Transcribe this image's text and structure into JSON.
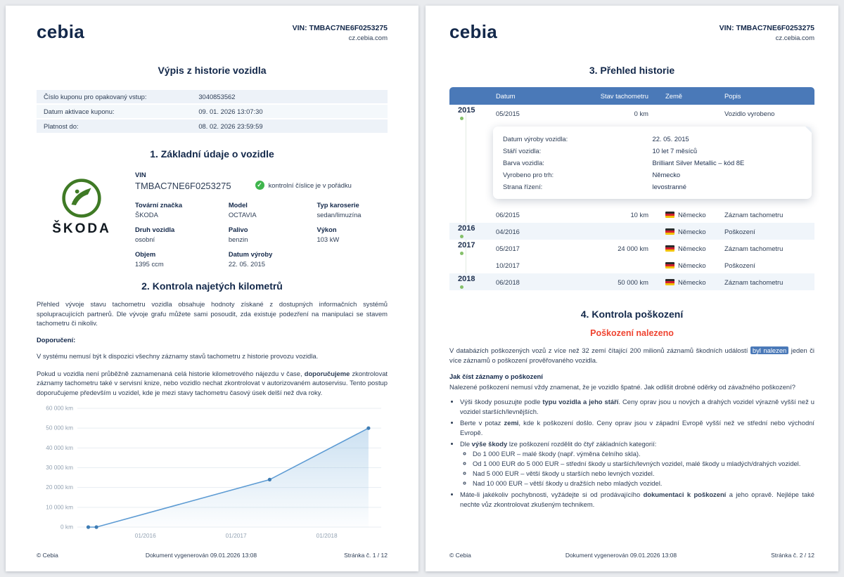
{
  "header": {
    "logo": "cebia",
    "vin": "VIN: TMBAC7NE6F0253275",
    "site": "cz.cebia.com"
  },
  "icons": {
    "check": "✓"
  },
  "page1": {
    "title": "Výpis z historie vozidla",
    "coupon_rows": [
      {
        "label": "Číslo kuponu pro opakovaný vstup:",
        "value": "3040853562"
      },
      {
        "label": "Datum aktivace kuponu:",
        "value": "09. 01. 2026 13:07:30"
      },
      {
        "label": "Platnost do:",
        "value": "08. 02. 2026 23:59:59"
      }
    ],
    "section1": {
      "title": "1. Základní údaje o vozidle",
      "skoda_logo_text": "ŠKODA",
      "vin_label": "VIN",
      "vin_value": "TMBAC7NE6F0253275",
      "vin_check": "kontrolní číslice je v pořádku",
      "fields": [
        {
          "label": "Tovární značka",
          "value": "ŠKODA"
        },
        {
          "label": "Model",
          "value": "OCTAVIA"
        },
        {
          "label": "Typ karoserie",
          "value": "sedan/limuzína"
        },
        {
          "label": "Druh vozidla",
          "value": "osobní"
        },
        {
          "label": "Palivo",
          "value": "benzin"
        },
        {
          "label": "Výkon",
          "value": "103 kW"
        },
        {
          "label": "Objem",
          "value": "1395 ccm"
        },
        {
          "label": "Datum výroby",
          "value": "22. 05. 2015"
        }
      ]
    },
    "section2": {
      "title": "2. Kontrola najetých kilometrů",
      "intro": "Přehled vývoje stavu tachometru vozidla obsahuje hodnoty získané z dostupných informačních systémů spolupracujících partnerů. Dle vývoje grafu můžete sami posoudit, zda existuje podezření na manipulaci se stavem tachometru či nikoliv.",
      "recommendation_label": "Doporučení:",
      "p1": "V systému nemusí být k dispozici všechny záznamy stavů tachometru z historie provozu vozidla.",
      "p2": [
        {
          "t": "Pokud u vozidla není průběžně zaznamenaná celá historie kilometrového nájezdu v čase, "
        },
        {
          "t": "doporučujeme",
          "b": true
        },
        {
          "t": " zkontrolovat záznamy tachometru také v servisní knize, nebo vozidlo nechat zkontrolovat v autorizovaném autoservisu. Tento postup doporučujeme především u vozidel, kde je mezi stavy tachometru časový úsek delší než dva roky."
        }
      ]
    },
    "footer": {
      "copyright": "© Cebia",
      "generated": "Dokument vygenerován 09.01.2026 13:08",
      "page": "Stránka č. 1 / 12"
    }
  },
  "chart_data": {
    "type": "line",
    "xlim": [
      2015.25,
      2018.6
    ],
    "ylim": [
      0,
      60000
    ],
    "grid": true,
    "legend": false,
    "line_color": "#5d9bd3",
    "points": [
      {
        "x": 2015.37,
        "y": 0,
        "label": "05/2015"
      },
      {
        "x": 2015.46,
        "y": 10,
        "label": "06/2015"
      },
      {
        "x": 2017.37,
        "y": 24000,
        "label": "05/2017"
      },
      {
        "x": 2018.46,
        "y": 50000,
        "label": "06/2018"
      }
    ],
    "yticks": [
      {
        "v": 0,
        "label": "0 km"
      },
      {
        "v": 10000,
        "label": "10 000 km"
      },
      {
        "v": 20000,
        "label": "20 000 km"
      },
      {
        "v": 30000,
        "label": "30 000 km"
      },
      {
        "v": 40000,
        "label": "40 000 km"
      },
      {
        "v": 50000,
        "label": "50 000 km"
      },
      {
        "v": 60000,
        "label": "60 000 km"
      }
    ],
    "xticks": [
      {
        "v": 2016,
        "label": "01/2016"
      },
      {
        "v": 2017,
        "label": "01/2017"
      },
      {
        "v": 2018,
        "label": "01/2018"
      }
    ]
  },
  "page2": {
    "title": "3. Přehled historie",
    "history": {
      "headers": [
        "Datum",
        "Stav tachometru",
        "Země",
        "Popis"
      ],
      "rows": [
        {
          "year": "2015",
          "datum": "05/2015",
          "tach": "0 km",
          "country": "",
          "popis": "Vozidlo vyrobeno"
        },
        {
          "year": "",
          "datum": "06/2015",
          "tach": "10 km",
          "country": "Německo",
          "popis": "Záznam tachometru"
        },
        {
          "year": "2016",
          "datum": "04/2016",
          "tach": "",
          "country": "Německo",
          "popis": "Poškození"
        },
        {
          "year": "2017",
          "datum": "05/2017",
          "tach": "24 000 km",
          "country": "Německo",
          "popis": "Záznam tachometru"
        },
        {
          "year": "",
          "datum": "10/2017",
          "tach": "",
          "country": "Německo",
          "popis": "Poškození"
        },
        {
          "year": "2018",
          "datum": "06/2018",
          "tach": "50 000 km",
          "country": "Německo",
          "popis": "Záznam tachometru"
        }
      ],
      "detail_rows": [
        {
          "label": "Datum výroby vozidla:",
          "value": "22. 05. 2015"
        },
        {
          "label": "Stáří vozidla:",
          "value": "10 let 7 měsíců"
        },
        {
          "label": "Barva vozidla:",
          "value": "Brilliant Silver Metallic – kód 8E"
        },
        {
          "label": "Vyrobeno pro trh:",
          "value": "Německo"
        },
        {
          "label": "Strana řízení:",
          "value": "levostranné"
        }
      ]
    },
    "section4": {
      "title": "4. Kontrola poškození",
      "status": "Poškození nalezeno",
      "intro": [
        {
          "t": "V databázích poškozených vozů z více než 32 zemí čítající 200 milionů záznamů škodních událostí "
        },
        {
          "t": "byl nalezen",
          "hl": true
        },
        {
          "t": " jeden či více záznamů o poškození prověřovaného vozidla."
        }
      ],
      "how_title": "Jak číst záznamy o poškození",
      "how_text": "Nalezené poškození nemusí vždy znamenat, že je vozidlo špatné. Jak odlišit drobné oděrky od závažného poškození?",
      "bullets": [
        [
          {
            "t": "Výši škody posuzujte podle "
          },
          {
            "t": "typu vozidla a jeho stáří",
            "b": true
          },
          {
            "t": ". Ceny oprav jsou u nových a drahých vozidel výrazně vyšší než u vozidel starších/levnějších."
          }
        ],
        [
          {
            "t": "Berte v potaz "
          },
          {
            "t": "zemi",
            "b": true
          },
          {
            "t": ", kde k poškození došlo. Ceny oprav jsou v západní Evropě vyšší než ve střední nebo východní Evropě."
          }
        ],
        [
          {
            "t": "Dle "
          },
          {
            "t": "výše škody",
            "b": true
          },
          {
            "t": " lze poškození rozdělit do čtyř základních kategorií:"
          }
        ]
      ],
      "sub_bullets": [
        "Do 1 000 EUR – malé škody (např. výměna čelního skla).",
        "Od 1 000 EUR do 5 000 EUR – střední škody u starších/levných vozidel, malé škody u mladých/drahých vozidel.",
        "Nad 5 000 EUR – větší škody u starších nebo levných vozidel.",
        "Nad 10 000 EUR – větší škody u dražších nebo mladých vozidel."
      ],
      "last_bullet": [
        {
          "t": "Máte-li jakékoliv pochybnosti, vyžádejte si od prodávajícího "
        },
        {
          "t": "dokumentaci k poškození",
          "b": true
        },
        {
          "t": " a jeho opravě. Nejlépe také nechte vůz zkontrolovat zkušeným technikem."
        }
      ]
    },
    "footer": {
      "copyright": "© Cebia",
      "generated": "Dokument vygenerován 09.01.2026 13:08",
      "page": "Stránka č. 2 / 12"
    }
  }
}
